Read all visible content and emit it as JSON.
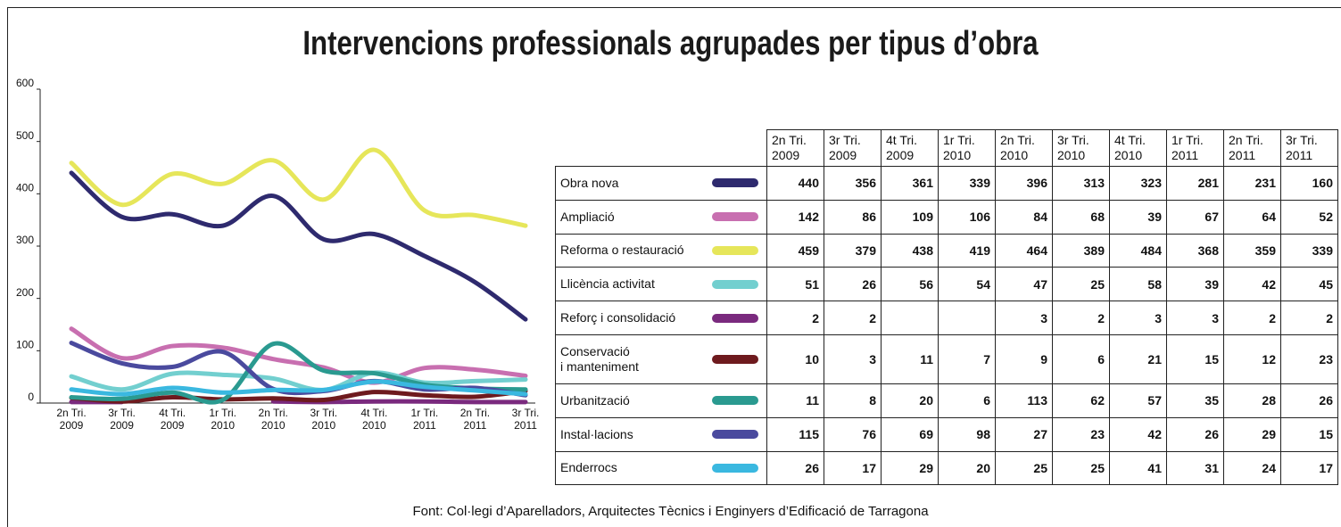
{
  "chart_data": {
    "type": "line",
    "title": "Intervencions professionals agrupades per tipus d’obra",
    "source": "Font: Col·legi d’Aparelladors, Arquitectes Tècnics i Enginyers d’Edificació de Tarragona",
    "categories": [
      [
        "2n Tri.",
        "2009"
      ],
      [
        "3r Tri.",
        "2009"
      ],
      [
        "4t Tri.",
        "2009"
      ],
      [
        "1r Tri.",
        "2010"
      ],
      [
        "2n Tri.",
        "2010"
      ],
      [
        "3r Tri.",
        "2010"
      ],
      [
        "4t Tri.",
        "2010"
      ],
      [
        "1r Tri.",
        "2011"
      ],
      [
        "2n Tri.",
        "2011"
      ],
      [
        "3r Tri.",
        "2011"
      ]
    ],
    "ylim": [
      0,
      600
    ],
    "yticks": [
      0,
      100,
      200,
      300,
      400,
      500,
      600
    ],
    "series": [
      {
        "name": "Obra nova",
        "color": "#2e2a6e",
        "values": [
          440,
          356,
          361,
          339,
          396,
          313,
          323,
          281,
          231,
          160
        ]
      },
      {
        "name": "Ampliació",
        "color": "#c86fb0",
        "values": [
          142,
          86,
          109,
          106,
          84,
          68,
          39,
          67,
          64,
          52
        ]
      },
      {
        "name": "Reforma o restauració",
        "color": "#e6e65a",
        "values": [
          459,
          379,
          438,
          419,
          464,
          389,
          484,
          368,
          359,
          339
        ]
      },
      {
        "name": "Llicència activitat",
        "color": "#72cfcf",
        "values": [
          51,
          26,
          56,
          54,
          47,
          25,
          58,
          39,
          42,
          45
        ]
      },
      {
        "name": "Reforç i consolidació",
        "color": "#7a2a7e",
        "values": [
          2,
          2,
          null,
          null,
          3,
          2,
          3,
          3,
          2,
          2
        ]
      },
      {
        "name": "Conservació\ni manteniment",
        "color": "#6e1a1e",
        "values": [
          10,
          3,
          11,
          7,
          9,
          6,
          21,
          15,
          12,
          23
        ]
      },
      {
        "name": "Urbanització",
        "color": "#2a9a90",
        "values": [
          11,
          8,
          20,
          6,
          113,
          62,
          57,
          35,
          28,
          26
        ]
      },
      {
        "name": "Instal·lacions",
        "color": "#4a4a9e",
        "values": [
          115,
          76,
          69,
          98,
          27,
          23,
          42,
          26,
          29,
          15
        ]
      },
      {
        "name": "Enderrocs",
        "color": "#3ab8e0",
        "values": [
          26,
          17,
          29,
          20,
          25,
          25,
          41,
          31,
          24,
          17
        ]
      }
    ]
  }
}
